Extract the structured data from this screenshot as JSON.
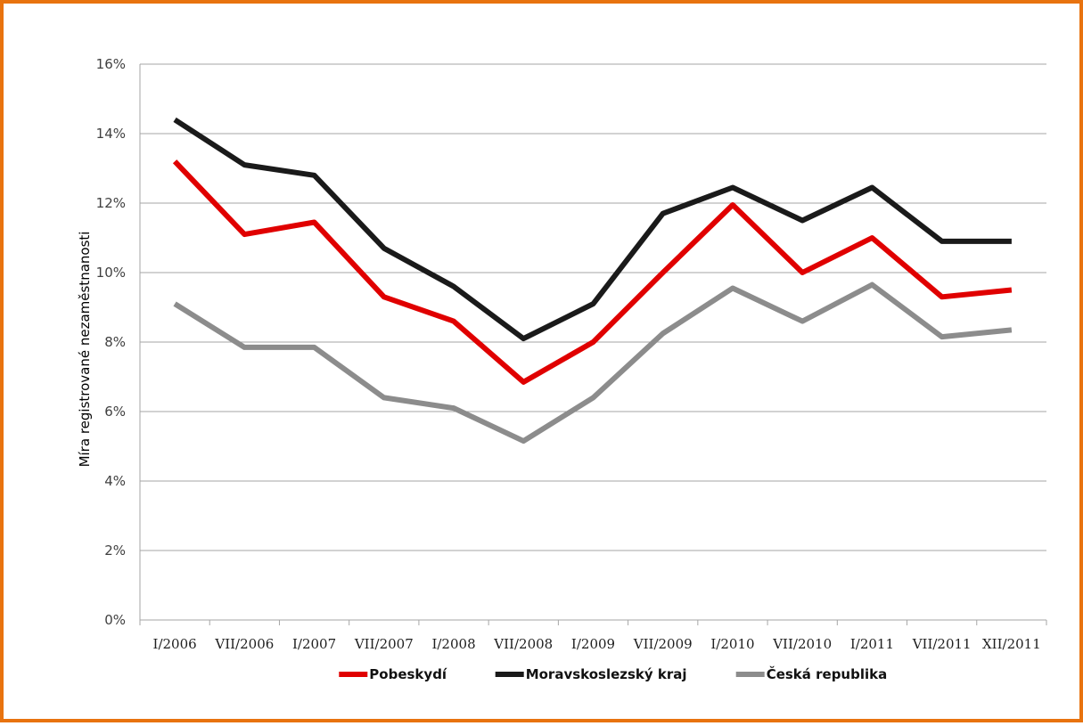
{
  "chart_data": {
    "type": "line",
    "title": "",
    "xlabel": "",
    "ylabel": "Míra registrované nezaměstnanosti",
    "categories": [
      "I/2006",
      "VII/2006",
      "I/2007",
      "VII/2007",
      "I/2008",
      "VII/2008",
      "I/2009",
      "VII/2009",
      "I/2010",
      "VII/2010",
      "I/2011",
      "VII/2011",
      "XII/2011"
    ],
    "ylim": [
      0,
      16
    ],
    "yticks": [
      0,
      2,
      4,
      6,
      8,
      10,
      12,
      14,
      16
    ],
    "ytick_labels": [
      "0%",
      "2%",
      "4%",
      "6%",
      "8%",
      "10%",
      "12%",
      "14%",
      "16%"
    ],
    "grid": "horizontal",
    "legend_position": "bottom",
    "series": [
      {
        "name": "Pobeskydí",
        "color": "#E00000",
        "values": [
          13.2,
          11.1,
          11.45,
          9.3,
          8.6,
          6.85,
          8.0,
          10.0,
          11.95,
          10.0,
          11.0,
          9.3,
          9.5
        ]
      },
      {
        "name": "Moravskoslezský kraj",
        "color": "#1A1A1A",
        "values": [
          14.4,
          13.1,
          12.8,
          10.7,
          9.6,
          8.1,
          9.1,
          11.7,
          12.45,
          11.5,
          12.45,
          10.9,
          10.9
        ]
      },
      {
        "name": "Česká republika",
        "color": "#8C8C8C",
        "values": [
          9.1,
          7.85,
          7.85,
          6.4,
          6.1,
          5.15,
          6.4,
          8.25,
          9.55,
          8.6,
          9.65,
          8.15,
          8.35
        ]
      }
    ]
  }
}
